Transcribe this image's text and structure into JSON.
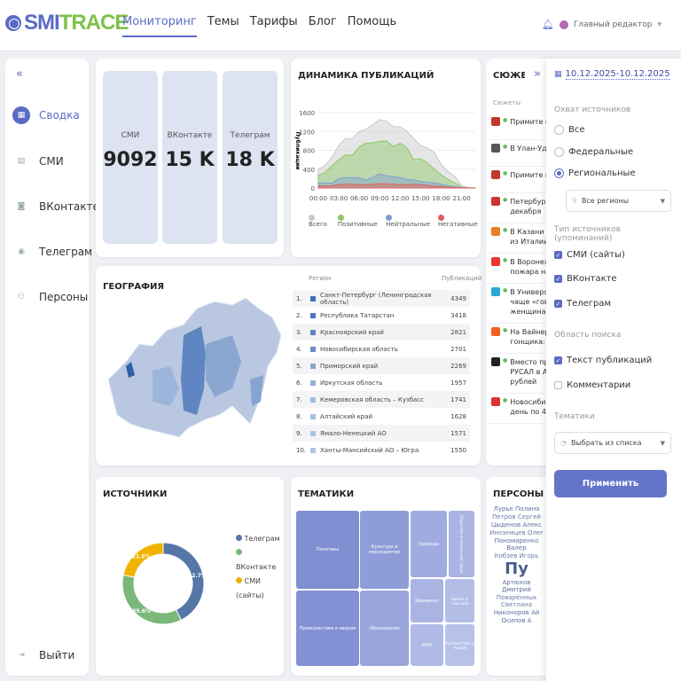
{
  "header": {
    "logo_a": "SMI",
    "logo_b": "TRACE",
    "nav": [
      "Мониторинг",
      "Темы",
      "Тарифы",
      "Блог",
      "Помощь"
    ],
    "active_nav": "Мониторинг",
    "user": "Главный редактор"
  },
  "sidebar": {
    "items": [
      {
        "label": "Сводка",
        "icon": "grid-icon",
        "active": true
      },
      {
        "label": "СМИ",
        "icon": "newspaper-icon"
      },
      {
        "label": "ВКонтакте",
        "icon": "vk-icon"
      },
      {
        "label": "Телеграм",
        "icon": "telegram-icon"
      },
      {
        "label": "Персоны",
        "icon": "people-icon"
      }
    ],
    "logout": "Выйти"
  },
  "stats": [
    {
      "label": "СМИ",
      "value": "9092"
    },
    {
      "label": "ВКонтакте",
      "value": "15 K"
    },
    {
      "label": "Телеграм",
      "value": "18 K"
    }
  ],
  "dynamics": {
    "title": "ДИНАМИКА ПУБЛИКАЦИЙ",
    "chart_data": {
      "type": "area",
      "ylabel": "Публикации",
      "ylim": [
        0,
        1600
      ],
      "yticks": [
        0,
        400,
        800,
        1200,
        1600
      ],
      "xticks": [
        "00:00",
        "03:00",
        "06:00",
        "09:00",
        "12:00",
        "15:00",
        "18:00",
        "21:00"
      ],
      "x": [
        0,
        1,
        2,
        3,
        4,
        5,
        6,
        7,
        8,
        9,
        10,
        11,
        12,
        13,
        14,
        15,
        16,
        17,
        18,
        19,
        20,
        21,
        22,
        23
      ],
      "series": [
        {
          "name": "Всего",
          "color": "#c8c8c8",
          "values": [
            400,
            480,
            650,
            900,
            1050,
            1050,
            1200,
            1250,
            1350,
            1450,
            1420,
            1300,
            1300,
            1200,
            1050,
            900,
            850,
            750,
            500,
            350,
            250,
            50,
            10,
            5
          ]
        },
        {
          "name": "Позитивные",
          "color": "#8cc865",
          "values": [
            270,
            330,
            480,
            600,
            700,
            700,
            880,
            950,
            960,
            990,
            1000,
            880,
            950,
            850,
            600,
            620,
            530,
            400,
            280,
            180,
            110,
            20,
            5,
            2
          ]
        },
        {
          "name": "Нейтральные",
          "color": "#7c9fd0",
          "values": [
            100,
            110,
            100,
            200,
            220,
            220,
            220,
            170,
            230,
            300,
            260,
            240,
            220,
            180,
            170,
            140,
            120,
            110,
            80,
            50,
            30,
            10,
            3,
            1
          ]
        },
        {
          "name": "Негативные",
          "color": "#e06060",
          "values": [
            40,
            40,
            50,
            70,
            80,
            80,
            70,
            70,
            80,
            90,
            90,
            80,
            70,
            70,
            80,
            70,
            60,
            40,
            30,
            20,
            10,
            5,
            2,
            1
          ]
        }
      ]
    }
  },
  "geo": {
    "title": "ГЕОГРАФИЯ",
    "col_region": "Регион",
    "col_count": "Публикаций",
    "rows": [
      {
        "n": "1.",
        "name": "Санкт-Петербург (Ленинградская область)",
        "count": "4349",
        "color": "#3d6cb3"
      },
      {
        "n": "2.",
        "name": "Республика Татарстан",
        "count": "3418",
        "color": "#4a76b8"
      },
      {
        "n": "3.",
        "name": "Красноярский край",
        "count": "2821",
        "color": "#5f86c2"
      },
      {
        "n": "4.",
        "name": "Новосибирская область",
        "count": "2701",
        "color": "#6a8ec6"
      },
      {
        "n": "5.",
        "name": "Приморский край",
        "count": "2269",
        "color": "#86a4d1"
      },
      {
        "n": "6.",
        "name": "Иркутская область",
        "count": "1957",
        "color": "#96b0d8"
      },
      {
        "n": "7.",
        "name": "Кемеровская область – Кузбасс",
        "count": "1741",
        "color": "#a3bbde"
      },
      {
        "n": "8.",
        "name": "Алтайский край",
        "count": "1628",
        "color": "#a8bee0"
      },
      {
        "n": "9.",
        "name": "Ямало-Ненецкий АО",
        "count": "1571",
        "color": "#adc2e2"
      },
      {
        "n": "10.",
        "name": "Ханты-Мансийский АО – Югра",
        "count": "1550",
        "color": "#b0c4e3"
      }
    ]
  },
  "stories": {
    "title": "СЮЖЕТЫ",
    "col": "Сюжеты",
    "items": [
      {
        "text": "Примите позд",
        "color": "#c0392b"
      },
      {
        "text": "В Улан-Удэ ту",
        "color": "#555"
      },
      {
        "text": "Примите позд",
        "color": "#c0392b"
      },
      {
        "text": "Петербуржцы",
        "text2": "декабря",
        "color": "#c33"
      },
      {
        "text": "В Казани отм",
        "text2": "из Италии, на",
        "color": "#e67e22"
      },
      {
        "text": "В Воронеже с",
        "text2": "пожара наш",
        "color": "#e33"
      },
      {
        "text": "В Университе",
        "text2": "чаще «говор",
        "text3": "женщинами",
        "color": "#29a8d8"
      },
      {
        "text": "На Вайнера",
        "text2": "гонщика: он б",
        "color": "#f06020"
      },
      {
        "text": "Вместо прио",
        "text2": "РУСАЛ в Ачи",
        "text3": "рублей",
        "color": "#222"
      },
      {
        "text": "Новосибирц",
        "text2": "день по 4 уо",
        "color": "#d33"
      }
    ]
  },
  "sources": {
    "title": "ИСТОЧНИКИ",
    "chart_data": {
      "type": "pie",
      "slices": [
        {
          "name": "Телеграм",
          "value": 42.7,
          "label": "42.7%",
          "color": "#5577a8"
        },
        {
          "name": "ВКонтакте",
          "value": 35.6,
          "label": "35.6%",
          "color": "#7ab97a"
        },
        {
          "name": "СМИ (сайты)",
          "value": 21.6,
          "label": "21.6%",
          "color": "#f0b400"
        }
      ]
    }
  },
  "topics": {
    "title": "ТЕМАТИКИ",
    "items": [
      "Политика",
      "Культура и мероприятия",
      "Природа",
      "Общество и социальная сфера",
      "Происшествия и аварии",
      "Образование",
      "Криминал",
      "Бизнес и торговля",
      "ЖКХ",
      "Путешествия и туризм"
    ]
  },
  "persons": {
    "title": "ПЕРСОНЫ",
    "words": [
      "Лурье Полина",
      "Петров Сергей",
      "Цыденов Алекс",
      "Иноземцев Олег",
      "Пономаренко Валер",
      "Кобзев Игорь",
      "Пу",
      "Артюхов Дмитрий",
      "Поварённых Светлана",
      "Никоноров Ай",
      "Осипов А"
    ]
  },
  "filters": {
    "date": "10.12.2025-10.12.2025",
    "coverage_label": "Охват источников",
    "coverage": [
      "Все",
      "Федеральные",
      "Региональные"
    ],
    "coverage_selected": "Региональные",
    "region_select": "Все регионы",
    "type_label": "Тип источников (упоминаний)",
    "types": [
      {
        "label": "СМИ (сайты)",
        "checked": true
      },
      {
        "label": "ВКонтакте",
        "checked": true
      },
      {
        "label": "Телеграм",
        "checked": true
      }
    ],
    "area_label": "Область поиска",
    "areas": [
      {
        "label": "Текст публикаций",
        "checked": true
      },
      {
        "label": "Комментарии",
        "checked": false
      }
    ],
    "topics_label": "Тематики",
    "topics_select": "Выбрать из списка",
    "apply": "Применить",
    "colors": {
      "accent": "#5a6bc5"
    }
  }
}
